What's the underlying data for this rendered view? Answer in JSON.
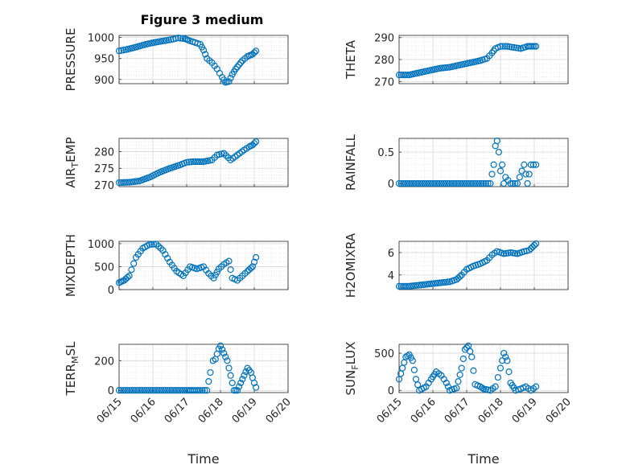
{
  "figure": {
    "title": "Figure 3 medium"
  },
  "colors": {
    "marker": "#0072BD",
    "grid": "#d9d9d9",
    "axis": "#262626",
    "background": "#ffffff"
  },
  "chart_data": [
    {
      "type": "scatter",
      "ylabel": "PRESSURE",
      "xlabel": "",
      "xlim": [
        "06/15",
        "06/20"
      ],
      "ylim": [
        890,
        1005
      ],
      "yticks": [
        900,
        950,
        1000
      ],
      "xticks": [
        "06/15",
        "06/16",
        "06/17",
        "06/18",
        "06/19",
        "06/20"
      ],
      "grid": true,
      "points": [
        [
          0.0,
          968
        ],
        [
          0.2,
          971
        ],
        [
          0.5,
          977
        ],
        [
          0.8,
          984
        ],
        [
          1.1,
          989
        ],
        [
          1.4,
          993
        ],
        [
          1.6,
          996
        ],
        [
          1.75,
          999
        ],
        [
          1.95,
          997
        ],
        [
          2.1,
          992
        ],
        [
          2.25,
          988
        ],
        [
          2.4,
          984
        ],
        [
          2.5,
          970
        ],
        [
          2.6,
          950
        ],
        [
          2.75,
          940
        ],
        [
          2.9,
          925
        ],
        [
          3.05,
          905
        ],
        [
          3.15,
          893
        ],
        [
          3.25,
          895
        ],
        [
          3.35,
          912
        ],
        [
          3.45,
          925
        ],
        [
          3.55,
          935
        ],
        [
          3.65,
          945
        ],
        [
          3.8,
          955
        ],
        [
          3.95,
          960
        ],
        [
          4.05,
          968
        ]
      ]
    },
    {
      "type": "scatter",
      "ylabel": "THETA",
      "xlabel": "",
      "xlim": [
        "06/15",
        "06/20"
      ],
      "ylim": [
        269,
        291
      ],
      "yticks": [
        270,
        280,
        290
      ],
      "xticks": [
        "06/15",
        "06/16",
        "06/17",
        "06/18",
        "06/19",
        "06/20"
      ],
      "grid": true,
      "points": [
        [
          0.0,
          273
        ],
        [
          0.3,
          273
        ],
        [
          0.6,
          274
        ],
        [
          0.9,
          275
        ],
        [
          1.2,
          276
        ],
        [
          1.5,
          276.5
        ],
        [
          1.8,
          277.5
        ],
        [
          2.1,
          278.5
        ],
        [
          2.4,
          279.5
        ],
        [
          2.6,
          280.5
        ],
        [
          2.75,
          283
        ],
        [
          2.85,
          285
        ],
        [
          3.0,
          286
        ],
        [
          3.2,
          286
        ],
        [
          3.4,
          285.5
        ],
        [
          3.6,
          285
        ],
        [
          3.8,
          286
        ],
        [
          3.95,
          286
        ],
        [
          4.05,
          286
        ]
      ]
    },
    {
      "type": "scatter",
      "ylabel": "AIR_TEMP",
      "xlabel": "",
      "xlim": [
        "06/15",
        "06/20"
      ],
      "ylim": [
        269.5,
        284
      ],
      "yticks": [
        270,
        275,
        280
      ],
      "xticks": [
        "06/15",
        "06/16",
        "06/17",
        "06/18",
        "06/19",
        "06/20"
      ],
      "grid": true,
      "points": [
        [
          0.0,
          270.7
        ],
        [
          0.3,
          270.8
        ],
        [
          0.6,
          271.2
        ],
        [
          0.9,
          272.3
        ],
        [
          1.2,
          273.8
        ],
        [
          1.5,
          275.0
        ],
        [
          1.8,
          276.0
        ],
        [
          2.0,
          276.8
        ],
        [
          2.2,
          277.0
        ],
        [
          2.5,
          277.0
        ],
        [
          2.75,
          277.5
        ],
        [
          2.9,
          279.0
        ],
        [
          3.1,
          279.5
        ],
        [
          3.3,
          277.5
        ],
        [
          3.5,
          279.0
        ],
        [
          3.7,
          280.5
        ],
        [
          3.85,
          281.5
        ],
        [
          3.95,
          282.0
        ],
        [
          4.05,
          283.0
        ]
      ]
    },
    {
      "type": "scatter",
      "ylabel": "RAINFALL",
      "xlabel": "",
      "xlim": [
        "06/15",
        "06/20"
      ],
      "ylim": [
        -0.05,
        0.72
      ],
      "yticks": [
        0,
        0.5
      ],
      "xticks": [
        "06/15",
        "06/16",
        "06/17",
        "06/18",
        "06/19",
        "06/20"
      ],
      "grid": true,
      "points": [
        [
          0.0,
          0
        ],
        [
          0.5,
          0
        ],
        [
          1.0,
          0
        ],
        [
          1.5,
          0
        ],
        [
          2.0,
          0
        ],
        [
          2.5,
          0
        ],
        [
          2.7,
          0
        ],
        [
          2.8,
          0.3
        ],
        [
          2.85,
          0.6
        ],
        [
          2.9,
          0.68
        ],
        [
          2.95,
          0.5
        ],
        [
          3.0,
          0.2
        ],
        [
          3.05,
          0.3
        ],
        [
          3.1,
          0
        ],
        [
          3.15,
          0.1
        ],
        [
          3.3,
          0
        ],
        [
          3.5,
          0
        ],
        [
          3.7,
          0.3
        ],
        [
          3.8,
          0
        ],
        [
          3.9,
          0.3
        ],
        [
          4.05,
          0.3
        ]
      ]
    },
    {
      "type": "scatter",
      "ylabel": "MIXDEPTH",
      "xlabel": "",
      "xlim": [
        "06/15",
        "06/20"
      ],
      "ylim": [
        0,
        1050
      ],
      "yticks": [
        0,
        500,
        1000
      ],
      "xticks": [
        "06/15",
        "06/16",
        "06/17",
        "06/18",
        "06/19",
        "06/20"
      ],
      "grid": true,
      "points": [
        [
          0.0,
          150
        ],
        [
          0.15,
          200
        ],
        [
          0.3,
          300
        ],
        [
          0.5,
          700
        ],
        [
          0.7,
          900
        ],
        [
          0.9,
          980
        ],
        [
          1.1,
          990
        ],
        [
          1.3,
          850
        ],
        [
          1.5,
          600
        ],
        [
          1.7,
          400
        ],
        [
          1.9,
          300
        ],
        [
          2.1,
          500
        ],
        [
          2.3,
          450
        ],
        [
          2.5,
          500
        ],
        [
          2.65,
          350
        ],
        [
          2.8,
          250
        ],
        [
          2.95,
          450
        ],
        [
          3.1,
          550
        ],
        [
          3.25,
          620
        ],
        [
          3.35,
          250
        ],
        [
          3.5,
          200
        ],
        [
          3.65,
          300
        ],
        [
          3.8,
          400
        ],
        [
          3.95,
          500
        ],
        [
          4.05,
          700
        ]
      ]
    },
    {
      "type": "scatter",
      "ylabel": "H2OMIXRA",
      "xlabel": "",
      "xlim": [
        "06/15",
        "06/20"
      ],
      "ylim": [
        2.7,
        7.0
      ],
      "yticks": [
        4,
        6
      ],
      "xticks": [
        "06/15",
        "06/16",
        "06/17",
        "06/18",
        "06/19",
        "06/20"
      ],
      "grid": true,
      "points": [
        [
          0.0,
          3.0
        ],
        [
          0.3,
          3.0
        ],
        [
          0.6,
          3.1
        ],
        [
          0.9,
          3.2
        ],
        [
          1.2,
          3.3
        ],
        [
          1.5,
          3.4
        ],
        [
          1.7,
          3.6
        ],
        [
          1.85,
          4.0
        ],
        [
          2.0,
          4.5
        ],
        [
          2.2,
          4.8
        ],
        [
          2.4,
          5.0
        ],
        [
          2.6,
          5.3
        ],
        [
          2.75,
          5.8
        ],
        [
          2.9,
          6.1
        ],
        [
          3.1,
          5.9
        ],
        [
          3.3,
          6.0
        ],
        [
          3.5,
          5.9
        ],
        [
          3.7,
          6.1
        ],
        [
          3.85,
          6.2
        ],
        [
          3.95,
          6.5
        ],
        [
          4.05,
          6.8
        ]
      ]
    },
    {
      "type": "scatter",
      "ylabel": "TERR_MSL",
      "xlabel": "Time",
      "xlim": [
        "06/15",
        "06/20"
      ],
      "ylim": [
        -15,
        310
      ],
      "yticks": [
        0,
        200
      ],
      "xticks": [
        "06/15",
        "06/16",
        "06/17",
        "06/18",
        "06/19",
        "06/20"
      ],
      "grid": true,
      "points": [
        [
          0.0,
          0
        ],
        [
          0.5,
          0
        ],
        [
          1.0,
          0
        ],
        [
          1.5,
          0
        ],
        [
          2.0,
          0
        ],
        [
          2.4,
          0
        ],
        [
          2.6,
          0
        ],
        [
          2.7,
          120
        ],
        [
          2.78,
          200
        ],
        [
          2.85,
          210
        ],
        [
          2.95,
          280
        ],
        [
          3.0,
          300
        ],
        [
          3.1,
          250
        ],
        [
          3.2,
          200
        ],
        [
          3.3,
          100
        ],
        [
          3.4,
          0
        ],
        [
          3.5,
          0
        ],
        [
          3.6,
          50
        ],
        [
          3.7,
          100
        ],
        [
          3.8,
          150
        ],
        [
          3.9,
          120
        ],
        [
          4.0,
          50
        ],
        [
          4.05,
          20
        ]
      ]
    },
    {
      "type": "scatter",
      "ylabel": "SUN_FLUX",
      "xlabel": "Time",
      "xlim": [
        "06/15",
        "06/20"
      ],
      "ylim": [
        -30,
        620
      ],
      "yticks": [
        0,
        500
      ],
      "xticks": [
        "06/15",
        "06/16",
        "06/17",
        "06/18",
        "06/19",
        "06/20"
      ],
      "grid": true,
      "points": [
        [
          0.0,
          150
        ],
        [
          0.1,
          300
        ],
        [
          0.2,
          450
        ],
        [
          0.3,
          480
        ],
        [
          0.4,
          400
        ],
        [
          0.5,
          150
        ],
        [
          0.6,
          0
        ],
        [
          0.8,
          50
        ],
        [
          0.95,
          150
        ],
        [
          1.1,
          250
        ],
        [
          1.25,
          200
        ],
        [
          1.4,
          100
        ],
        [
          1.5,
          0
        ],
        [
          1.7,
          30
        ],
        [
          1.85,
          300
        ],
        [
          1.95,
          550
        ],
        [
          2.05,
          600
        ],
        [
          2.15,
          450
        ],
        [
          2.25,
          80
        ],
        [
          2.4,
          50
        ],
        [
          2.5,
          20
        ],
        [
          2.7,
          0
        ],
        [
          2.85,
          50
        ],
        [
          3.0,
          300
        ],
        [
          3.1,
          500
        ],
        [
          3.2,
          400
        ],
        [
          3.3,
          100
        ],
        [
          3.45,
          0
        ],
        [
          3.6,
          20
        ],
        [
          3.75,
          50
        ],
        [
          3.9,
          0
        ],
        [
          4.05,
          50
        ]
      ]
    }
  ]
}
